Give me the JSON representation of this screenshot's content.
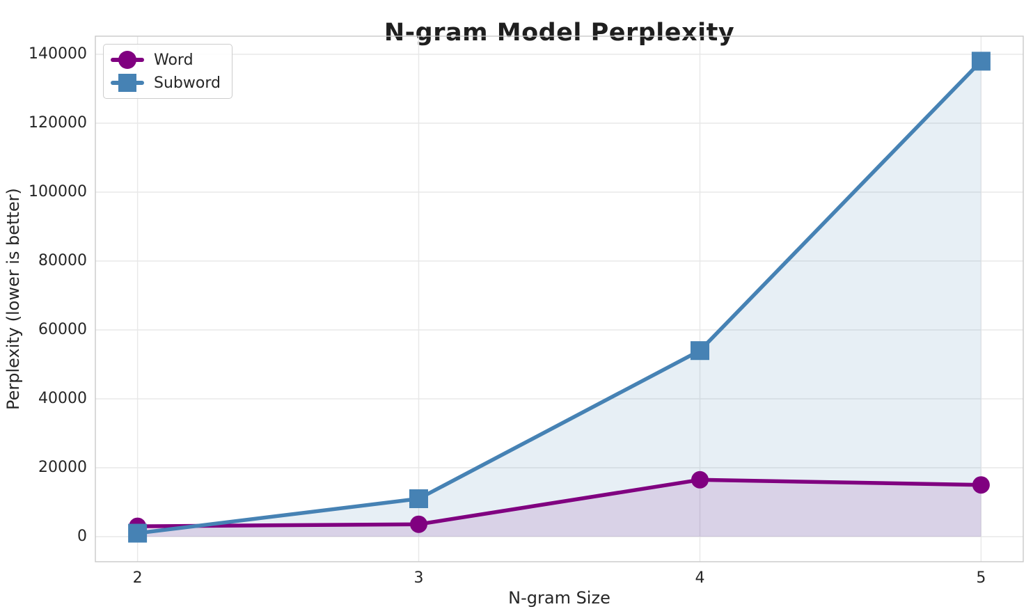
{
  "figure": {
    "title": "N-gram Model Perplexity",
    "xlabel": "N-gram Size",
    "ylabel": "Perplexity (lower is better)"
  },
  "chart_data": {
    "type": "line",
    "title": "N-gram Model Perplexity",
    "xlabel": "N-gram Size",
    "ylabel": "Perplexity (lower is better)",
    "x": [
      2,
      3,
      4,
      5
    ],
    "series": [
      {
        "name": "Word",
        "color": "#800080",
        "marker": "circle",
        "fill_alpha": 0.13,
        "values": [
          3000,
          3600,
          16500,
          15000
        ]
      },
      {
        "name": "Subword",
        "color": "#4682B4",
        "marker": "square",
        "fill_alpha": 0.13,
        "values": [
          1000,
          11000,
          54000,
          138000
        ]
      }
    ],
    "xticks": [
      2,
      3,
      4,
      5
    ],
    "yticks": [
      0,
      20000,
      40000,
      60000,
      80000,
      100000,
      120000,
      140000
    ],
    "xlim": [
      1.85,
      5.15
    ],
    "ylim": [
      -7273,
      145252
    ],
    "grid": true,
    "fill_to_zero": true,
    "legend_position": "upper left",
    "grid_color": "#e8e8e8",
    "spine_color": "#c9c9c9",
    "text_color": "#262626"
  }
}
